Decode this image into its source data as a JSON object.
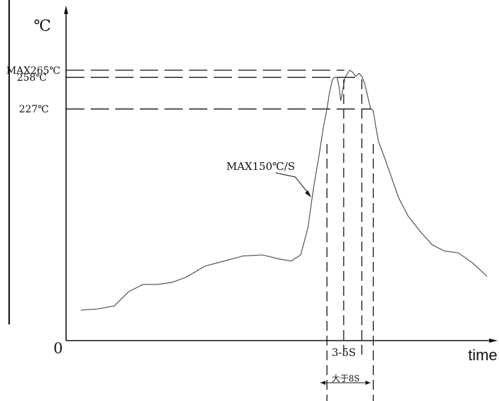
{
  "chart_data": {
    "type": "line",
    "xlabel": "time",
    "ylabel": "℃",
    "origin_label": "0",
    "series": [
      {
        "points": [
          [
            0.0,
            30
          ],
          [
            3.5,
            31
          ],
          [
            7.0,
            34
          ],
          [
            10.0,
            48
          ],
          [
            13.0,
            55
          ],
          [
            16.0,
            55
          ],
          [
            19.0,
            57
          ],
          [
            22.0,
            62
          ],
          [
            26.0,
            73
          ],
          [
            30.0,
            78
          ],
          [
            34.0,
            83
          ],
          [
            38.0,
            84
          ],
          [
            41.5,
            80
          ],
          [
            44.0,
            78
          ],
          [
            46.0,
            84
          ],
          [
            47.5,
            110
          ],
          [
            48.7,
            150
          ],
          [
            49.8,
            180
          ],
          [
            50.8,
            210
          ],
          [
            51.5,
            227
          ],
          [
            52.0,
            242
          ],
          [
            52.6,
            255
          ],
          [
            53.0,
            258
          ],
          [
            53.6,
            258
          ],
          [
            54.0,
            250
          ],
          [
            54.4,
            235
          ],
          [
            54.9,
            248
          ],
          [
            55.3,
            258
          ],
          [
            55.8,
            262
          ],
          [
            56.3,
            265
          ],
          [
            56.9,
            263
          ],
          [
            57.5,
            259
          ],
          [
            58.2,
            262
          ],
          [
            58.8,
            259
          ],
          [
            59.4,
            252
          ],
          [
            60.0,
            240
          ],
          [
            60.6,
            228
          ],
          [
            61.2,
            225
          ],
          [
            61.7,
            210
          ],
          [
            62.3,
            195
          ],
          [
            63.5,
            180
          ],
          [
            65.0,
            160
          ],
          [
            66.5,
            140
          ],
          [
            68.5,
            122
          ],
          [
            71.0,
            107
          ],
          [
            73.5,
            94
          ],
          [
            76.0,
            88
          ],
          [
            79.0,
            86
          ],
          [
            82.0,
            76
          ],
          [
            85.0,
            63
          ]
        ]
      }
    ],
    "reference_lines": [
      {
        "label": "MAX265℃",
        "value": 265
      },
      {
        "label": "258℃",
        "value": 258
      },
      {
        "label": "227℃",
        "value": 227
      }
    ],
    "annotations": {
      "ramp_rate": "MAX150℃/S",
      "peak_window": "3-5S",
      "above_227_window": "大于8S"
    },
    "vertical_markers": [
      51.5,
      55.0,
      58.8,
      61.2
    ],
    "xlim": [
      -2,
      90
    ],
    "ylim": [
      0,
      300
    ],
    "grid": false
  }
}
